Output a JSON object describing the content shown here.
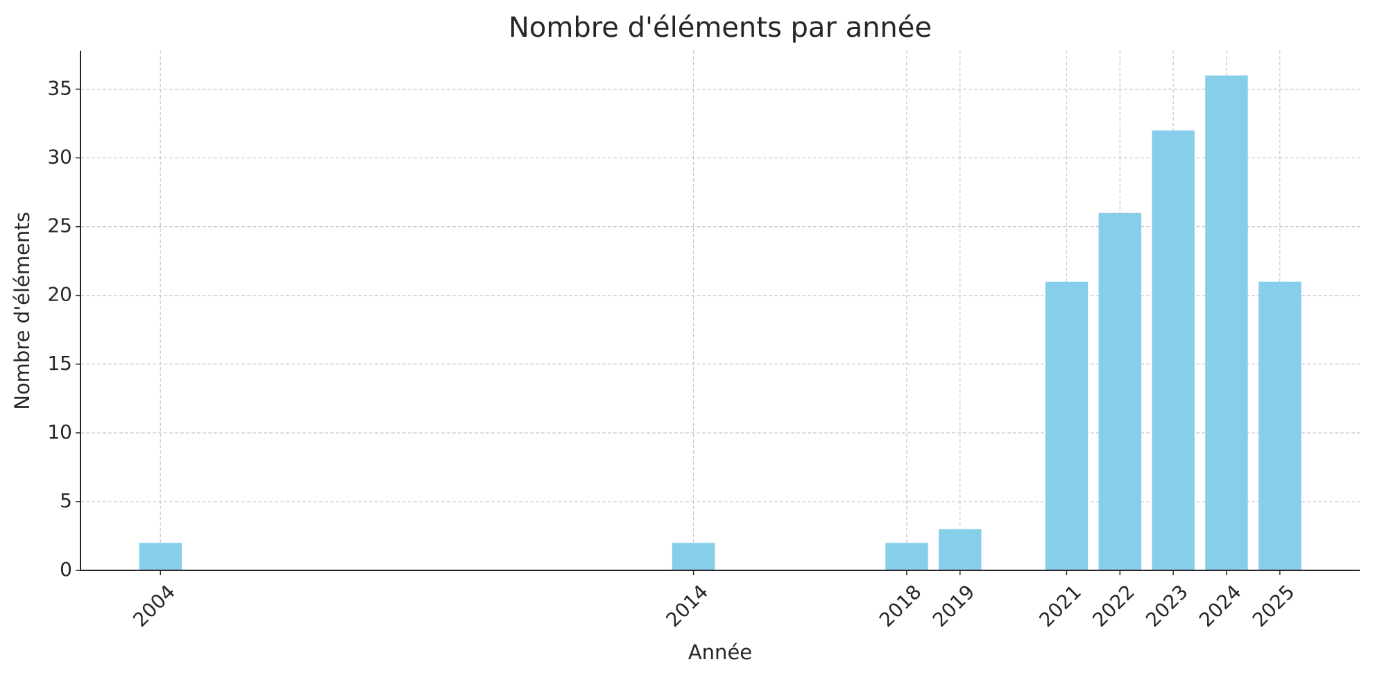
{
  "chart_data": {
    "type": "bar",
    "title": "Nombre d'éléments par année",
    "x_label": "Année",
    "y_label": "Nombre d'éléments",
    "x": [
      2004,
      2014,
      2018,
      2019,
      2021,
      2022,
      2023,
      2024,
      2025
    ],
    "values": [
      2,
      2,
      2,
      3,
      21,
      26,
      32,
      36,
      21
    ],
    "color": "#87ceeb",
    "xlim": [
      2002.5,
      2026.5
    ],
    "xticks": [
      2004,
      2014,
      2018,
      2019,
      2021,
      2022,
      2023,
      2024,
      2025
    ],
    "ylim": [
      0,
      37.8
    ],
    "yticks": [
      0,
      5,
      10,
      15,
      20,
      25,
      30,
      35
    ],
    "grid": true
  }
}
